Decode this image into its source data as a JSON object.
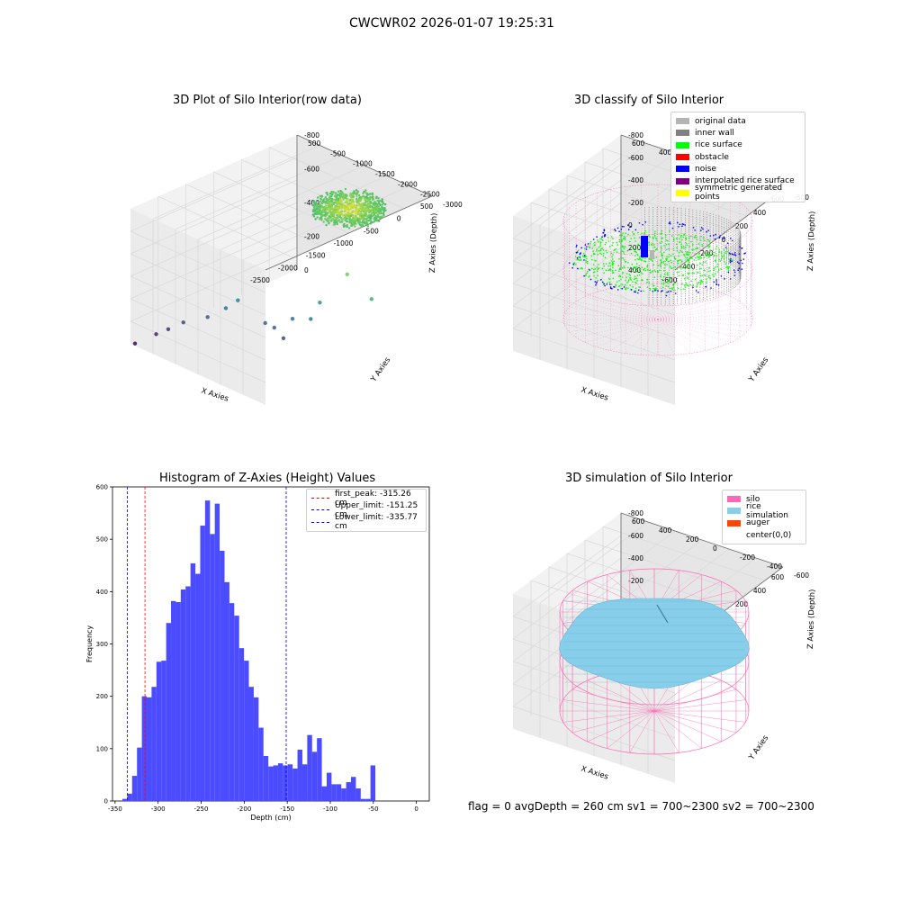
{
  "figure": {
    "title": "CWCWR02 2026-01-07 19:25:31",
    "footer": "flag = 0     avgDepth = 260 cm  sv1 = 700~2300  sv2 = 700~2300"
  },
  "colors": {
    "histogram_bar": "#4b4bff",
    "first_peak_line": "#ff0000",
    "limit_lines": "#0000ff",
    "silo_wire": "#ff69b4",
    "rice_simulation": "#87ceeb",
    "auger": "#ff4500",
    "panel_gray": "#f2f2f2",
    "grid": "#d9d9d9"
  },
  "chart_data": [
    {
      "type": "scatter",
      "projection": "3d",
      "title": "3D Plot of Silo Interior(row data)",
      "xlabel": "X Axies",
      "ylabel": "Y Axies",
      "zlabel": "Z Axies (Depth)",
      "x_ticks": [
        "-2500",
        "-2000",
        "-1500",
        "-1000",
        "-500",
        "0",
        "500"
      ],
      "y_ticks": [
        "500",
        "-500",
        "-1000",
        "-1500",
        "-2000",
        "-2500",
        "-3000"
      ],
      "z_ticks": [
        "0",
        "-200",
        "-400",
        "-600",
        "-800"
      ],
      "colormap": "viridis",
      "grid": true,
      "outlier_points": [
        {
          "x": -2500,
          "y": -3000,
          "z": -880
        },
        {
          "x": -2300,
          "y": -2700,
          "z": -800
        },
        {
          "x": -2200,
          "y": -2500,
          "z": -760
        },
        {
          "x": -2050,
          "y": -2300,
          "z": -700
        },
        {
          "x": -1800,
          "y": -2000,
          "z": -640
        },
        {
          "x": -1600,
          "y": -1800,
          "z": -560
        },
        {
          "x": -1500,
          "y": -1600,
          "z": -500
        },
        {
          "x": -1200,
          "y": -1300,
          "z": -620
        },
        {
          "x": -1100,
          "y": -1200,
          "z": -640
        },
        {
          "x": -1000,
          "y": -1100,
          "z": -700
        },
        {
          "x": -900,
          "y": -1000,
          "z": -560
        },
        {
          "x": -700,
          "y": -800,
          "z": -540
        },
        {
          "x": -600,
          "y": -700,
          "z": -420
        },
        {
          "x": -300,
          "y": -400,
          "z": -200
        },
        {
          "x": 0,
          "y": -200,
          "z": -330
        }
      ],
      "surface_cluster": {
        "x_range": [
          -600,
          600
        ],
        "y_range": [
          -600,
          600
        ],
        "z_range": [
          -120,
          -320
        ]
      }
    },
    {
      "type": "scatter",
      "projection": "3d",
      "title": "3D classify of Silo Interior",
      "xlabel": "X Axies",
      "ylabel": "Y Axies",
      "zlabel": "Z Axies (Depth)",
      "x_ticks": [
        "-600",
        "-400",
        "-200",
        "0",
        "200",
        "400",
        "600"
      ],
      "y_ticks": [
        "600",
        "400",
        "200",
        "0",
        "-200",
        "-400",
        "-600"
      ],
      "z_ticks": [
        "400",
        "200",
        "0",
        "-200",
        "-400",
        "-600",
        "-800"
      ],
      "legend_position": "upper right",
      "series": [
        {
          "name": "original data",
          "color": "#b4b4b4"
        },
        {
          "name": "inner wall",
          "color": "#808080"
        },
        {
          "name": "rice surface",
          "color": "#00ff00"
        },
        {
          "name": "obstacle",
          "color": "#ff0000"
        },
        {
          "name": "noise",
          "color": "#0000ff"
        },
        {
          "name": "interpolated rice surface",
          "color": "#800080"
        },
        {
          "name": "symmetric generated points",
          "color": "#ffff00"
        }
      ]
    },
    {
      "type": "bar",
      "title": "Histogram of Z-Axies (Height) Values",
      "xlabel": "Depth (cm)",
      "ylabel": "Frequency",
      "xlim": [
        -353,
        15
      ],
      "ylim": [
        0,
        600
      ],
      "x_ticks": [
        "-350",
        "-300",
        "-250",
        "-200",
        "-150",
        "-100",
        "-50",
        "0"
      ],
      "y_ticks": [
        "0",
        "100",
        "200",
        "300",
        "400",
        "500",
        "600"
      ],
      "bin_start": -341.5,
      "bin_width": 5.65,
      "values": [
        4,
        14,
        48,
        102,
        200,
        198,
        218,
        266,
        268,
        340,
        382,
        380,
        404,
        410,
        454,
        434,
        526,
        574,
        510,
        568,
        478,
        418,
        378,
        354,
        292,
        268,
        218,
        198,
        140,
        86,
        66,
        68,
        72,
        68,
        70,
        62,
        98,
        70,
        126,
        94,
        120,
        28,
        54,
        32,
        32,
        24,
        36,
        46,
        24,
        4,
        4,
        68
      ],
      "reference_lines": [
        {
          "label": "first_peak: -315.26 cm",
          "x": -315.26,
          "color": "#ff0000",
          "style": "dashed"
        },
        {
          "label": "Upper_limit: -151.25 cm",
          "x": -151.25,
          "color": "#0000ff",
          "style": "dashed"
        },
        {
          "label": "Lower_limit: -335.77 cm",
          "x": -335.77,
          "color": "#0000ff",
          "style": "dashed"
        }
      ],
      "legend_position": "upper right"
    },
    {
      "type": "surface",
      "projection": "3d",
      "title": "3D simulation of Silo Interior",
      "xlabel": "X Axies",
      "ylabel": "Y Axies",
      "zlabel": "Z Axies (Depth)",
      "x_ticks": [
        "-600",
        "-400",
        "-200",
        "0",
        "200",
        "400",
        "600"
      ],
      "y_ticks": [
        "600",
        "400",
        "200",
        "0",
        "-200",
        "-400",
        "-600"
      ],
      "z_ticks": [
        "400",
        "200",
        "0",
        "-200",
        "-400",
        "-600",
        "-800"
      ],
      "legend_position": "upper right",
      "series": [
        {
          "name": "silo",
          "color": "#ff69b4"
        },
        {
          "name": "rice simulation",
          "color": "#87ceeb"
        },
        {
          "name": "auger",
          "color": "#ff4500"
        },
        {
          "name": "center(0,0)",
          "color": ""
        }
      ]
    }
  ]
}
